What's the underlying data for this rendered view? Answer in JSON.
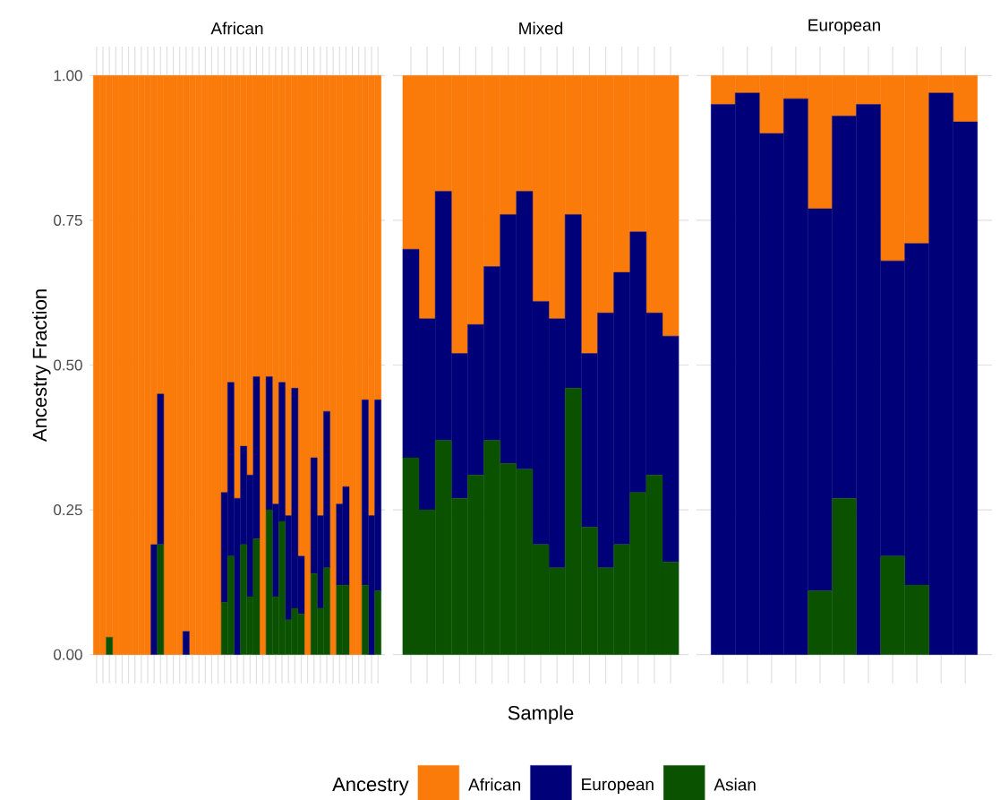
{
  "chart_data": [
    {
      "type": "bar",
      "title": "African",
      "ylabel": "Ancestry Fraction",
      "stacked": true,
      "grid": true,
      "ylim": [
        -0.05,
        1.05
      ],
      "yticks": [
        {
          "value": 0,
          "label": "0.00"
        },
        {
          "value": 0.25,
          "label": "0.25"
        },
        {
          "value": 0.5,
          "label": "0.50"
        },
        {
          "value": 0.75,
          "label": "0.75"
        },
        {
          "value": 1,
          "label": "1.00"
        }
      ],
      "categories": [
        null,
        null,
        null,
        null,
        null,
        null,
        null,
        null,
        null,
        null,
        null,
        null,
        null,
        null,
        null,
        null,
        null,
        null,
        null,
        null,
        null,
        null,
        null,
        null,
        null,
        null,
        null,
        null,
        null,
        null,
        null,
        null,
        null,
        null,
        null,
        null,
        null,
        null,
        null,
        null,
        null,
        null,
        null,
        null,
        null
      ],
      "series": [
        {
          "color": "#0b5200",
          "values": [
            0,
            0,
            0.03,
            0,
            0,
            0,
            0,
            0,
            0,
            0,
            0.19,
            0,
            0,
            0,
            0,
            0,
            0,
            0,
            0,
            0,
            0.09,
            0.17,
            0,
            0.19,
            0.1,
            0.2,
            0,
            0.25,
            0.1,
            0.23,
            0.06,
            0.08,
            0.07,
            0,
            0.14,
            0.08,
            0.15,
            0,
            0.12,
            0.12,
            0,
            0,
            0.12,
            0,
            0.11
          ]
        },
        {
          "color": "#000078",
          "values": [
            0,
            0,
            0,
            0,
            0,
            0,
            0,
            0,
            0,
            0.19,
            0.26,
            0,
            0,
            0,
            0.04,
            0,
            0,
            0,
            0,
            0,
            0.19,
            0.3,
            0.27,
            0.17,
            0.21,
            0.28,
            0,
            0.23,
            0.16,
            0.24,
            0.18,
            0.38,
            0.1,
            0,
            0.2,
            0.16,
            0.27,
            0,
            0.14,
            0.17,
            0,
            0,
            0.32,
            0.24,
            0.33
          ]
        },
        {
          "color": "#fa7a0a",
          "values": [
            1,
            1,
            0.97,
            1,
            1,
            1,
            1,
            1,
            1,
            0.81,
            0.55,
            1,
            1,
            1,
            0.96,
            1,
            1,
            1,
            1,
            1,
            0.72,
            0.53,
            0.73,
            0.64,
            0.69,
            0.52,
            1,
            0.52,
            0.74,
            0.53,
            0.76,
            0.54,
            0.83,
            1,
            0.66,
            0.76,
            0.58,
            1,
            0.74,
            0.71,
            1,
            1,
            0.56,
            0.76,
            0.56
          ]
        }
      ]
    },
    {
      "type": "bar",
      "title": "Mixed",
      "xlabel": "Sample",
      "stacked": true,
      "grid": true,
      "tick_labels": false,
      "legend": "bottom",
      "legend_title": "Ancestry",
      "ylim": [
        -0.05,
        1.05
      ],
      "yticks": [
        0,
        0.25,
        0.5,
        0.75,
        1
      ],
      "categories": [
        null,
        null,
        null,
        null,
        null,
        null,
        null,
        null,
        null,
        null,
        null,
        null,
        null,
        null,
        null,
        null,
        null
      ],
      "series": [
        {
          "name": "Asian",
          "color": "#0b5200",
          "values": [
            0.34,
            0.25,
            0.37,
            0.27,
            0.31,
            0.37,
            0.33,
            0.32,
            0.19,
            0.15,
            0.46,
            0.22,
            0.15,
            0.19,
            0.28,
            0.31,
            0.16
          ]
        },
        {
          "name": "European",
          "color": "#000078",
          "values": [
            0.36,
            0.33,
            0.43,
            0.25,
            0.26,
            0.3,
            0.43,
            0.48,
            0.42,
            0.43,
            0.3,
            0.3,
            0.44,
            0.47,
            0.45,
            0.28,
            0.39
          ]
        },
        {
          "name": "African",
          "color": "#fa7a0a",
          "values": [
            0.3,
            0.42,
            0.2,
            0.48,
            0.43,
            0.33,
            0.24,
            0.2,
            0.39,
            0.42,
            0.24,
            0.48,
            0.41,
            0.34,
            0.27,
            0.41,
            0.45
          ]
        }
      ]
    },
    {
      "type": "bar",
      "title": "European",
      "stacked": true,
      "grid": true,
      "tick_labels": false,
      "ylim": [
        -0.05,
        1.05
      ],
      "yticks": [
        0,
        0.25,
        0.5,
        0.75,
        1
      ],
      "categories": [
        null,
        null,
        null,
        null,
        null,
        null,
        null,
        null,
        null,
        null,
        null
      ],
      "series": [
        {
          "color": "#0b5200",
          "values": [
            0,
            0,
            0,
            0,
            0.11,
            0.27,
            0,
            0.17,
            0.12,
            0,
            0
          ]
        },
        {
          "color": "#000078",
          "values": [
            0.95,
            0.97,
            0.9,
            0.96,
            0.66,
            0.66,
            0.95,
            0.51,
            0.59,
            0.97,
            0.92
          ]
        },
        {
          "color": "#fa7a0a",
          "values": [
            0.05,
            0.03,
            0.1,
            0.04,
            0.23,
            0.07,
            0.05,
            0.32,
            0.29,
            0.03,
            0.08
          ]
        }
      ]
    }
  ]
}
